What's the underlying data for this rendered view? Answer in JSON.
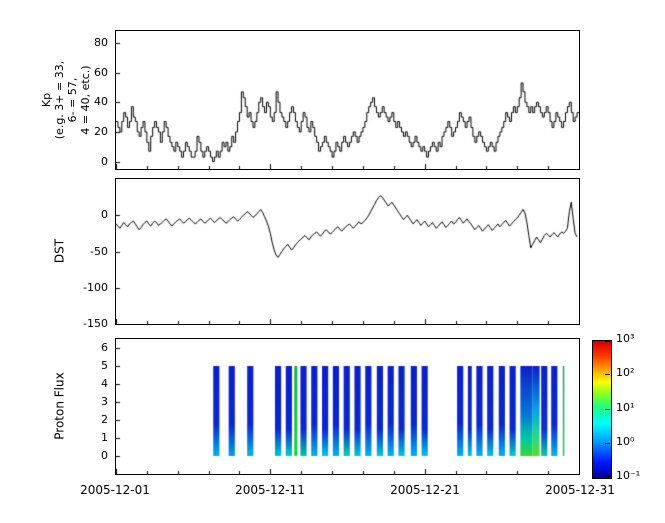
{
  "figure": {
    "background": "#ffffff",
    "line_color": "#000000"
  },
  "xaxis": {
    "range_days": [
      0,
      30
    ],
    "ticks": [
      {
        "day": 0,
        "label": "2005-12-01"
      },
      {
        "day": 10,
        "label": "2005-12-11"
      },
      {
        "day": 20,
        "label": "2005-12-21"
      },
      {
        "day": 30,
        "label": "2005-12-31"
      }
    ]
  },
  "chart_data": [
    {
      "id": "kp",
      "type": "line",
      "line_style": "steps-post",
      "ylabel": "Kp\n(e.g. 3+ = 33,\n6- = 57,\n4 = 40, etc.)",
      "ylim": [
        -5,
        88
      ],
      "yticks": [
        0,
        20,
        40,
        60,
        80
      ],
      "x_start": "2005-12-01",
      "x_interval_hours": 3,
      "values": [
        27,
        23,
        20,
        27,
        33,
        30,
        23,
        27,
        37,
        30,
        27,
        20,
        17,
        23,
        27,
        20,
        13,
        7,
        17,
        23,
        27,
        23,
        20,
        13,
        20,
        27,
        23,
        17,
        13,
        10,
        7,
        13,
        10,
        7,
        3,
        7,
        13,
        10,
        7,
        3,
        3,
        7,
        17,
        13,
        7,
        3,
        7,
        10,
        7,
        3,
        0,
        3,
        7,
        3,
        7,
        13,
        10,
        13,
        7,
        10,
        17,
        13,
        20,
        27,
        33,
        47,
        43,
        37,
        30,
        33,
        27,
        23,
        27,
        33,
        40,
        43,
        37,
        33,
        40,
        37,
        30,
        27,
        33,
        47,
        40,
        33,
        30,
        27,
        23,
        27,
        33,
        37,
        33,
        27,
        23,
        20,
        27,
        33,
        30,
        23,
        20,
        27,
        23,
        17,
        13,
        7,
        10,
        13,
        17,
        13,
        10,
        7,
        3,
        7,
        13,
        10,
        7,
        13,
        17,
        13,
        10,
        13,
        17,
        20,
        17,
        13,
        17,
        20,
        23,
        27,
        33,
        37,
        40,
        43,
        37,
        33,
        30,
        33,
        37,
        33,
        30,
        27,
        30,
        33,
        27,
        23,
        27,
        23,
        20,
        17,
        20,
        17,
        13,
        10,
        13,
        17,
        13,
        10,
        7,
        10,
        7,
        3,
        7,
        10,
        13,
        10,
        7,
        13,
        10,
        17,
        20,
        23,
        27,
        23,
        17,
        20,
        23,
        27,
        33,
        30,
        27,
        23,
        27,
        30,
        23,
        17,
        13,
        17,
        20,
        17,
        13,
        10,
        7,
        10,
        13,
        10,
        7,
        13,
        17,
        20,
        23,
        27,
        33,
        30,
        27,
        33,
        37,
        33,
        37,
        43,
        53,
        47,
        40,
        37,
        33,
        37,
        33,
        37,
        40,
        37,
        33,
        30,
        33,
        37,
        33,
        27,
        23,
        27,
        33,
        30,
        27,
        23,
        27,
        33,
        37,
        40,
        33,
        27,
        30,
        33
      ]
    },
    {
      "id": "dst",
      "type": "line",
      "ylabel": "DST",
      "ylim": [
        -150,
        50
      ],
      "yticks": [
        0,
        -50,
        -100,
        -150
      ],
      "x_start": "2005-12-01",
      "x_interval_hours": 3,
      "values": [
        -12,
        -15,
        -18,
        -14,
        -10,
        -13,
        -16,
        -12,
        -10,
        -8,
        -12,
        -16,
        -20,
        -17,
        -13,
        -10,
        -8,
        -12,
        -15,
        -11,
        -8,
        -10,
        -14,
        -12,
        -10,
        -7,
        -5,
        -8,
        -12,
        -15,
        -12,
        -9,
        -7,
        -5,
        -8,
        -11,
        -9,
        -6,
        -4,
        -7,
        -9,
        -12,
        -10,
        -7,
        -5,
        -8,
        -11,
        -9,
        -6,
        -4,
        -7,
        -10,
        -8,
        -5,
        -3,
        -6,
        -8,
        -11,
        -9,
        -6,
        -4,
        -2,
        -5,
        -8,
        -6,
        -3,
        0,
        2,
        5,
        3,
        0,
        -3,
        -1,
        2,
        5,
        8,
        4,
        -2,
        -8,
        -15,
        -25,
        -38,
        -48,
        -55,
        -58,
        -54,
        -50,
        -46,
        -43,
        -40,
        -44,
        -48,
        -45,
        -41,
        -38,
        -35,
        -33,
        -30,
        -28,
        -31,
        -34,
        -30,
        -27,
        -25,
        -23,
        -26,
        -29,
        -26,
        -22,
        -20,
        -23,
        -26,
        -24,
        -21,
        -18,
        -16,
        -19,
        -22,
        -19,
        -16,
        -14,
        -12,
        -15,
        -18,
        -15,
        -12,
        -9,
        -12,
        -10,
        -7,
        -4,
        0,
        5,
        10,
        15,
        20,
        24,
        27,
        25,
        21,
        17,
        13,
        15,
        18,
        14,
        10,
        6,
        2,
        -2,
        -6,
        -3,
        0,
        -4,
        -8,
        -12,
        -9,
        -6,
        -10,
        -14,
        -11,
        -8,
        -12,
        -16,
        -13,
        -10,
        -14,
        -18,
        -15,
        -12,
        -9,
        -13,
        -17,
        -14,
        -11,
        -8,
        -12,
        -10,
        -6,
        -3,
        -7,
        -11,
        -8,
        -5,
        -9,
        -12,
        -16,
        -20,
        -17,
        -14,
        -18,
        -22,
        -19,
        -16,
        -13,
        -17,
        -21,
        -18,
        -15,
        -12,
        -16,
        -13,
        -10,
        -7,
        -11,
        -15,
        -12,
        -9,
        -6,
        -4,
        0,
        4,
        8,
        3,
        -10,
        -28,
        -45,
        -40,
        -35,
        -30,
        -34,
        -38,
        -33,
        -28,
        -25,
        -27,
        -30,
        -27,
        -24,
        -27,
        -30,
        -26,
        -23,
        -25,
        -22,
        -18,
        5,
        18,
        -5,
        -25,
        -30
      ]
    },
    {
      "id": "proton_flux",
      "type": "heatmap",
      "ylabel": "Proton Flux",
      "ylim": [
        -1,
        6.5
      ],
      "yticks": [
        0,
        1,
        2,
        3,
        4,
        5,
        6
      ],
      "y_extent": [
        0,
        5
      ],
      "colormap": "jet",
      "colorbar_ticks": [
        "10⁻¹",
        "10⁰",
        "10¹",
        "10²",
        "10³"
      ],
      "stripes": [
        {
          "d0": 6.3,
          "d1": 6.7,
          "stops": [
            [
              0,
              "#00b4f0"
            ],
            [
              0.35,
              "#0a28d0"
            ],
            [
              1,
              "#0a20c8"
            ]
          ]
        },
        {
          "d0": 7.3,
          "d1": 7.7,
          "stops": [
            [
              0,
              "#00a0e8"
            ],
            [
              0.35,
              "#0a28d0"
            ],
            [
              1,
              "#0a20c8"
            ]
          ]
        },
        {
          "d0": 8.5,
          "d1": 8.9,
          "stops": [
            [
              0,
              "#00b4f0"
            ],
            [
              0.35,
              "#0a28d0"
            ],
            [
              1,
              "#0a20c8"
            ]
          ]
        },
        {
          "d0": 10.3,
          "d1": 10.7,
          "stops": [
            [
              0,
              "#00c8e0"
            ],
            [
              0.3,
              "#0a28d0"
            ],
            [
              1,
              "#0a20c8"
            ]
          ]
        },
        {
          "d0": 11.0,
          "d1": 11.4,
          "stops": [
            [
              0,
              "#00d0c0"
            ],
            [
              0.3,
              "#0a28d0"
            ],
            [
              1,
              "#0a20c8"
            ]
          ]
        },
        {
          "d0": 11.55,
          "d1": 11.75,
          "stops": [
            [
              0,
              "#18d23c"
            ],
            [
              0.5,
              "#14c244"
            ],
            [
              1,
              "#10b44c"
            ]
          ]
        },
        {
          "d0": 11.95,
          "d1": 12.35,
          "stops": [
            [
              0,
              "#00c8a0"
            ],
            [
              0.3,
              "#0a28d0"
            ],
            [
              1,
              "#0a20c8"
            ]
          ]
        },
        {
          "d0": 12.65,
          "d1": 13.05,
          "stops": [
            [
              0,
              "#00b4f0"
            ],
            [
              0.35,
              "#0a28d0"
            ],
            [
              1,
              "#0a20c8"
            ]
          ]
        },
        {
          "d0": 13.35,
          "d1": 13.75,
          "stops": [
            [
              0,
              "#00c8e0"
            ],
            [
              0.3,
              "#0a28d0"
            ],
            [
              1,
              "#0a20c8"
            ]
          ]
        },
        {
          "d0": 14.05,
          "d1": 14.45,
          "stops": [
            [
              0,
              "#00b4f0"
            ],
            [
              0.35,
              "#0a28d0"
            ],
            [
              1,
              "#0a20c8"
            ]
          ]
        },
        {
          "d0": 14.75,
          "d1": 15.15,
          "stops": [
            [
              0,
              "#00d2b4"
            ],
            [
              0.3,
              "#0a28d0"
            ],
            [
              1,
              "#0a20c8"
            ]
          ]
        },
        {
          "d0": 15.45,
          "d1": 15.85,
          "stops": [
            [
              0,
              "#00c8e0"
            ],
            [
              0.3,
              "#0a28d0"
            ],
            [
              1,
              "#0a20c8"
            ]
          ]
        },
        {
          "d0": 16.15,
          "d1": 16.55,
          "stops": [
            [
              0,
              "#00b4f0"
            ],
            [
              0.35,
              "#0a28d0"
            ],
            [
              1,
              "#0a20c8"
            ]
          ]
        },
        {
          "d0": 16.9,
          "d1": 17.3,
          "stops": [
            [
              0,
              "#00c8e0"
            ],
            [
              0.3,
              "#0a28d0"
            ],
            [
              1,
              "#0a20c8"
            ]
          ]
        },
        {
          "d0": 17.6,
          "d1": 18.0,
          "stops": [
            [
              0,
              "#00b4f0"
            ],
            [
              0.35,
              "#0a28d0"
            ],
            [
              1,
              "#0a20c8"
            ]
          ]
        },
        {
          "d0": 18.3,
          "d1": 18.7,
          "stops": [
            [
              0,
              "#00c8e0"
            ],
            [
              0.3,
              "#0a28d0"
            ],
            [
              1,
              "#0a20c8"
            ]
          ]
        },
        {
          "d0": 19.1,
          "d1": 19.5,
          "stops": [
            [
              0,
              "#00b4f0"
            ],
            [
              0.35,
              "#0a28d0"
            ],
            [
              1,
              "#0a20c8"
            ]
          ]
        },
        {
          "d0": 19.8,
          "d1": 20.2,
          "stops": [
            [
              0,
              "#00c8e0"
            ],
            [
              0.3,
              "#0a28d0"
            ],
            [
              1,
              "#0a20c8"
            ]
          ]
        },
        {
          "d0": 22.1,
          "d1": 22.5,
          "stops": [
            [
              0,
              "#00b4f0"
            ],
            [
              0.35,
              "#0a28d0"
            ],
            [
              1,
              "#0a20c8"
            ]
          ]
        },
        {
          "d0": 22.8,
          "d1": 23.05,
          "stops": [
            [
              0,
              "#00c8e0"
            ],
            [
              0.3,
              "#0a28d0"
            ],
            [
              1,
              "#0a20c8"
            ]
          ]
        },
        {
          "d0": 23.35,
          "d1": 23.75,
          "stops": [
            [
              0,
              "#00b4f0"
            ],
            [
              0.35,
              "#0a28d0"
            ],
            [
              1,
              "#0a20c8"
            ]
          ]
        },
        {
          "d0": 24.05,
          "d1": 24.45,
          "stops": [
            [
              0,
              "#00c8e0"
            ],
            [
              0.3,
              "#0a28d0"
            ],
            [
              1,
              "#0a20c8"
            ]
          ]
        },
        {
          "d0": 24.8,
          "d1": 25.2,
          "stops": [
            [
              0,
              "#00b4f0"
            ],
            [
              0.35,
              "#0a28d0"
            ],
            [
              1,
              "#0a20c8"
            ]
          ]
        },
        {
          "d0": 25.5,
          "d1": 25.9,
          "stops": [
            [
              0,
              "#00d0c0"
            ],
            [
              0.3,
              "#0a28d0"
            ],
            [
              1,
              "#0a20c8"
            ]
          ]
        },
        {
          "d0": 26.2,
          "d1": 27.0,
          "stops": [
            [
              0,
              "#38d830"
            ],
            [
              0.2,
              "#00c8a8"
            ],
            [
              0.45,
              "#0878d8"
            ],
            [
              1,
              "#0a20c8"
            ]
          ]
        },
        {
          "d0": 27.0,
          "d1": 27.45,
          "stops": [
            [
              0,
              "#58e028"
            ],
            [
              0.25,
              "#20d890"
            ],
            [
              0.5,
              "#00a8e8"
            ],
            [
              1,
              "#0a20c8"
            ]
          ]
        },
        {
          "d0": 27.55,
          "d1": 27.95,
          "stops": [
            [
              0,
              "#00d0a0"
            ],
            [
              0.3,
              "#0a30d0"
            ],
            [
              1,
              "#0a20c8"
            ]
          ]
        },
        {
          "d0": 28.2,
          "d1": 28.6,
          "stops": [
            [
              0,
              "#00b4f0"
            ],
            [
              0.35,
              "#0a28d0"
            ],
            [
              1,
              "#0a20c8"
            ]
          ]
        },
        {
          "d0": 28.95,
          "d1": 29.05,
          "stops": [
            [
              0,
              "#20c864"
            ],
            [
              0.5,
              "#18b46c"
            ],
            [
              1,
              "#10a474"
            ]
          ]
        }
      ]
    }
  ]
}
